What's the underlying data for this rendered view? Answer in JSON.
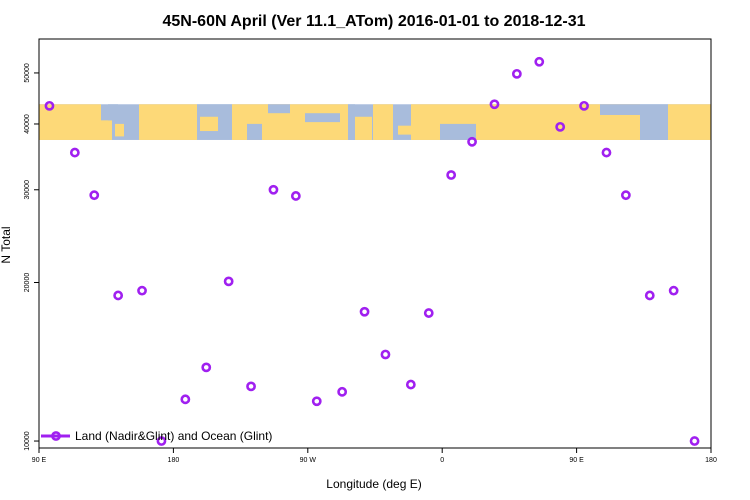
{
  "chart_data": {
    "type": "scatter",
    "title": "45N-60N April (Ver 11.1_ATom)   2016-01-01 to 2018-12-31",
    "xlabel": "Longitude (deg E)",
    "ylabel": "N Total",
    "x_ticks": [
      {
        "value": 90,
        "label": "90 E"
      },
      {
        "value": 180,
        "label": "180"
      },
      {
        "value": 270,
        "label": "90 W"
      },
      {
        "value": 360,
        "label": "0"
      },
      {
        "value": 450,
        "label": "90 E"
      },
      {
        "value": 540,
        "label": "180"
      }
    ],
    "y_ticks": [
      10000,
      20000,
      30000,
      40000,
      50000
    ],
    "y_scale": "log",
    "xlim": [
      90,
      540
    ],
    "ylim": [
      9700,
      58000
    ],
    "grid": false,
    "legend_position": "bottom-left",
    "series": [
      {
        "name": "Land (Nadir&Glint) and Ocean (Glint)",
        "color": "#a020f0",
        "marker": "open-circle",
        "points": [
          {
            "x": 97,
            "y": 43300
          },
          {
            "x": 114,
            "y": 35300
          },
          {
            "x": 127,
            "y": 29300
          },
          {
            "x": 143,
            "y": 18900
          },
          {
            "x": 159,
            "y": 19300
          },
          {
            "x": 172,
            "y": 10000
          },
          {
            "x": 188,
            "y": 12000
          },
          {
            "x": 202,
            "y": 13800
          },
          {
            "x": 217,
            "y": 20100
          },
          {
            "x": 232,
            "y": 12700
          },
          {
            "x": 247,
            "y": 30000
          },
          {
            "x": 262,
            "y": 29200
          },
          {
            "x": 276,
            "y": 11900
          },
          {
            "x": 293,
            "y": 12400
          },
          {
            "x": 308,
            "y": 17600
          },
          {
            "x": 322,
            "y": 14600
          },
          {
            "x": 339,
            "y": 12800
          },
          {
            "x": 351,
            "y": 17500
          },
          {
            "x": 366,
            "y": 32000
          },
          {
            "x": 380,
            "y": 37000
          },
          {
            "x": 395,
            "y": 43600
          },
          {
            "x": 410,
            "y": 49800
          },
          {
            "x": 425,
            "y": 52500
          },
          {
            "x": 439,
            "y": 39500
          },
          {
            "x": 455,
            "y": 43300
          },
          {
            "x": 470,
            "y": 35300
          },
          {
            "x": 483,
            "y": 29300
          },
          {
            "x": 499,
            "y": 18900
          },
          {
            "x": 515,
            "y": 19300
          },
          {
            "x": 529,
            "y": 10000
          }
        ]
      }
    ],
    "map_band": {
      "y_range": [
        37300,
        43600
      ],
      "ocean_color": "#a8bcdc",
      "land_color": "#fdd978"
    }
  }
}
